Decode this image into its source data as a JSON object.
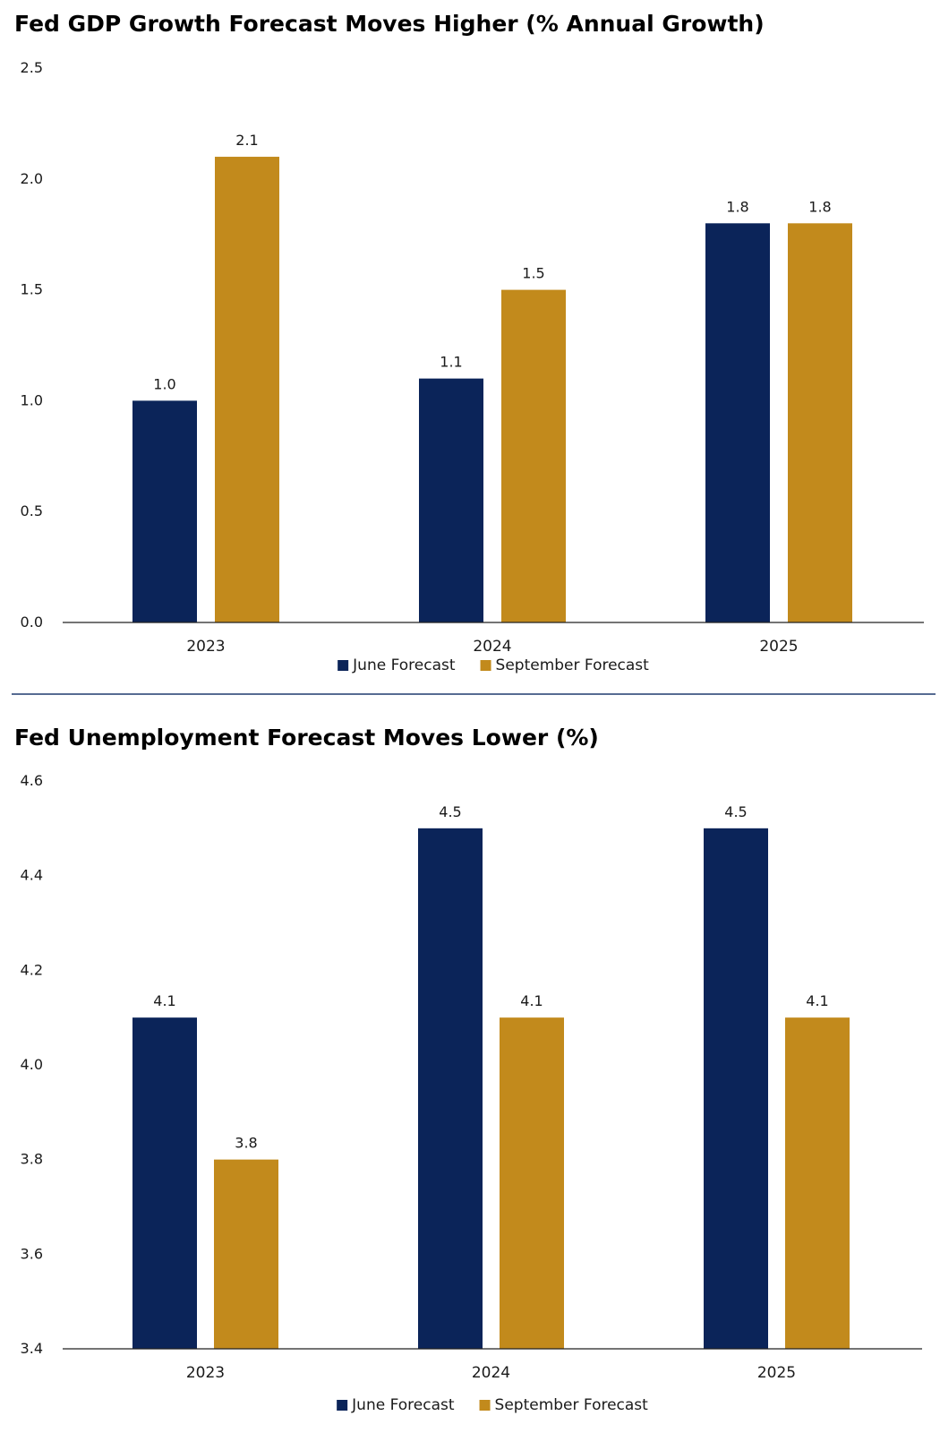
{
  "chart_data": [
    {
      "type": "bar",
      "title": "Fed GDP Growth Forecast Moves Higher (% Annual Growth)",
      "categories": [
        "2023",
        "2024",
        "2025"
      ],
      "series": [
        {
          "name": "June Forecast",
          "values": [
            1.0,
            1.1,
            1.8
          ],
          "color": "#0b2459"
        },
        {
          "name": "September Forecast",
          "values": [
            2.1,
            1.5,
            1.8
          ],
          "color": "#c28a1c"
        }
      ],
      "data_labels": [
        [
          "1.0",
          "1.1",
          "1.8"
        ],
        [
          "2.1",
          "1.5",
          "1.8"
        ]
      ],
      "yticks": [
        "0.0",
        "0.5",
        "1.0",
        "1.5",
        "2.0",
        "2.5"
      ],
      "ylim": [
        0,
        2.5
      ],
      "grid": false,
      "legend": "bottom-center"
    },
    {
      "type": "bar",
      "title": "Fed Unemployment Forecast Moves Lower (%)",
      "categories": [
        "2023",
        "2024",
        "2025"
      ],
      "series": [
        {
          "name": "June Forecast",
          "values": [
            4.1,
            4.5,
            4.5
          ],
          "color": "#0b2459"
        },
        {
          "name": "September Forecast",
          "values": [
            3.8,
            4.1,
            4.1
          ],
          "color": "#c28a1c"
        }
      ],
      "data_labels": [
        [
          "4.1",
          "4.5",
          "4.5"
        ],
        [
          "3.8",
          "4.1",
          "4.1"
        ]
      ],
      "yticks": [
        "3.4",
        "3.6",
        "3.8",
        "4.0",
        "4.2",
        "4.4",
        "4.6"
      ],
      "ylim": [
        3.4,
        4.6
      ],
      "grid": false,
      "legend": "bottom-center"
    }
  ]
}
